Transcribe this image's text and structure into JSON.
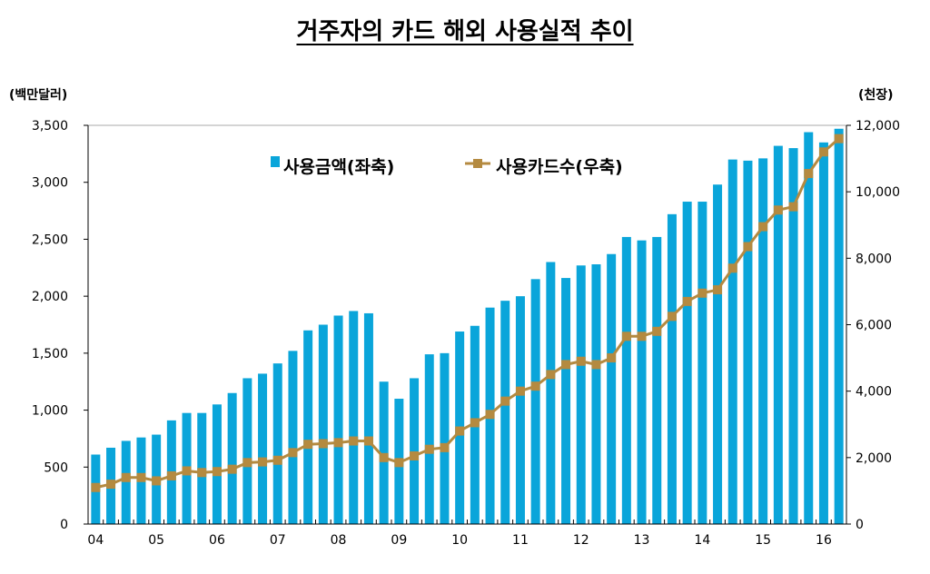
{
  "chart_data": {
    "type": "bar+line",
    "title": "거주자의 카드 해외 사용실적 추이",
    "left_unit": "(백만달러)",
    "right_unit": "(천장)",
    "categories_note": "quarterly 2004Q1-2016Q2",
    "x_tick_labels": [
      "04",
      "05",
      "06",
      "07",
      "08",
      "09",
      "10",
      "11",
      "12",
      "13",
      "14",
      "15",
      "16"
    ],
    "left_axis": {
      "ylim": [
        0,
        3500
      ],
      "ticks": [
        "0",
        "500",
        "1,000",
        "1,500",
        "2,000",
        "2,500",
        "3,000",
        "3,500"
      ],
      "tick_values": [
        0,
        500,
        1000,
        1500,
        2000,
        2500,
        3000,
        3500
      ]
    },
    "right_axis": {
      "ylim": [
        0,
        12000
      ],
      "ticks": [
        "0",
        "2,000",
        "4,000",
        "6,000",
        "8,000",
        "10,000",
        "12,000"
      ],
      "tick_values": [
        0,
        2000,
        4000,
        6000,
        8000,
        10000,
        12000
      ]
    },
    "legend_position": "top-center",
    "series": [
      {
        "name": "사용금액(좌축)",
        "type": "bar",
        "axis": "left",
        "color": "#0aa5da",
        "values": [
          610,
          670,
          730,
          760,
          785,
          910,
          975,
          975,
          1050,
          1150,
          1280,
          1320,
          1410,
          1520,
          1700,
          1750,
          1830,
          1870,
          1850,
          1250,
          1100,
          1280,
          1490,
          1500,
          1690,
          1740,
          1900,
          1960,
          2000,
          2150,
          2300,
          2160,
          2270,
          2280,
          2370,
          2520,
          2490,
          2520,
          2720,
          2830,
          2830,
          2980,
          3200,
          3190,
          3210,
          3320,
          3300,
          3440,
          3350,
          3470
        ]
      },
      {
        "name": "사용카드수(우축)",
        "type": "line",
        "axis": "right",
        "color": "#b48a40",
        "values": [
          1100,
          1200,
          1400,
          1400,
          1300,
          1450,
          1600,
          1550,
          1580,
          1650,
          1850,
          1870,
          1920,
          2150,
          2400,
          2420,
          2450,
          2500,
          2500,
          2000,
          1850,
          2050,
          2250,
          2300,
          2800,
          3050,
          3300,
          3700,
          4000,
          4150,
          4500,
          4800,
          4900,
          4800,
          5000,
          5650,
          5650,
          5800,
          6250,
          6700,
          6950,
          7050,
          7700,
          8350,
          8950,
          9450,
          9550,
          10550,
          11200,
          11600
        ]
      }
    ]
  }
}
